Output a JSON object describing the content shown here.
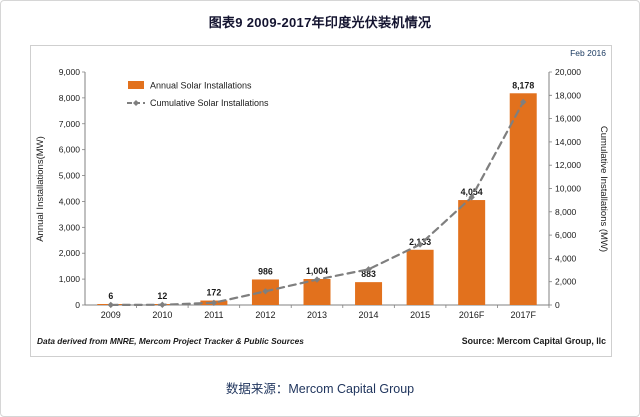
{
  "page": {
    "title": "图表9 2009-2017年印度光伏装机情况",
    "caption": "数据来源：Mercom Capital Group"
  },
  "chart_data": {
    "type": "bar",
    "title": "图表9 2009-2017年印度光伏装机情况",
    "note_top_right": "Feb 2016",
    "categories": [
      "2009",
      "2010",
      "2011",
      "2012",
      "2013",
      "2014",
      "2015",
      "2016F",
      "2017F"
    ],
    "series": [
      {
        "name": "Annual Solar Installations",
        "type": "bar",
        "axis": "left",
        "color": "#E2711D",
        "values": [
          6,
          12,
          172,
          986,
          1004,
          883,
          2133,
          4054,
          8178
        ],
        "value_labels": [
          "6",
          "12",
          "172",
          "986",
          "1,004",
          "883",
          "2,133",
          "4,054",
          "8,178"
        ]
      },
      {
        "name": "Cumulative Solar Installations",
        "type": "line",
        "axis": "right",
        "color": "#7F7F7F",
        "style": "dashed",
        "values": [
          6,
          18,
          190,
          1176,
          2180,
          3063,
          5196,
          9250,
          17428
        ]
      }
    ],
    "left_axis": {
      "label": "Annual Installations(MW)",
      "min": 0,
      "max": 9000,
      "step": 1000
    },
    "right_axis": {
      "label": "Cumulative Installations (MW)",
      "min": 0,
      "max": 20000,
      "step": 2000
    },
    "legend_position": "top-left-inside",
    "grid": false,
    "footnote_left": "Data derived from MNRE, Mercom Project Tracker & Public Sources",
    "footnote_right": "Source: Mercom Capital Group, llc",
    "accent_colors": {
      "bar_orange": "#E2711D",
      "line_gray": "#7F7F7F",
      "note_blue": "#17375E"
    }
  }
}
